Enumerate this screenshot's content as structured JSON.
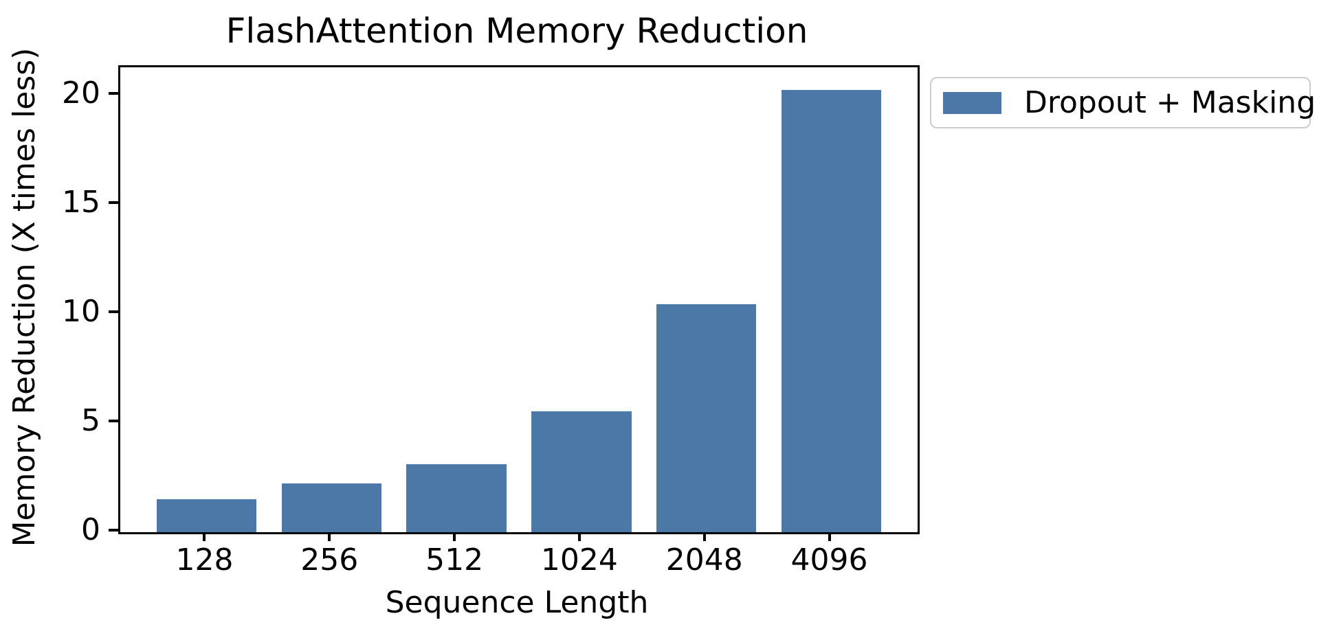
{
  "title": "FlashAttention Memory Reduction",
  "legend": {
    "label": "Dropout + Masking"
  },
  "chart_data": {
    "type": "bar",
    "title": "FlashAttention Memory Reduction",
    "categories": [
      "128",
      "256",
      "512",
      "1024",
      "2048",
      "4096"
    ],
    "series": [
      {
        "name": "Dropout + Masking",
        "values": [
          1.5,
          2.25,
          3.1,
          5.55,
          10.45,
          20.25
        ]
      }
    ],
    "xlabel": "Sequence Length",
    "ylabel": "Memory Reduction (X times less)",
    "ylim": [
      0,
      21.3
    ],
    "yticks": [
      0,
      5,
      10,
      15,
      20
    ],
    "grid": false,
    "legend_position": "outside-upper-right",
    "bar_color": "#4C78A8",
    "axis_color": "#000000",
    "legend_border_color": "#cccccc"
  }
}
